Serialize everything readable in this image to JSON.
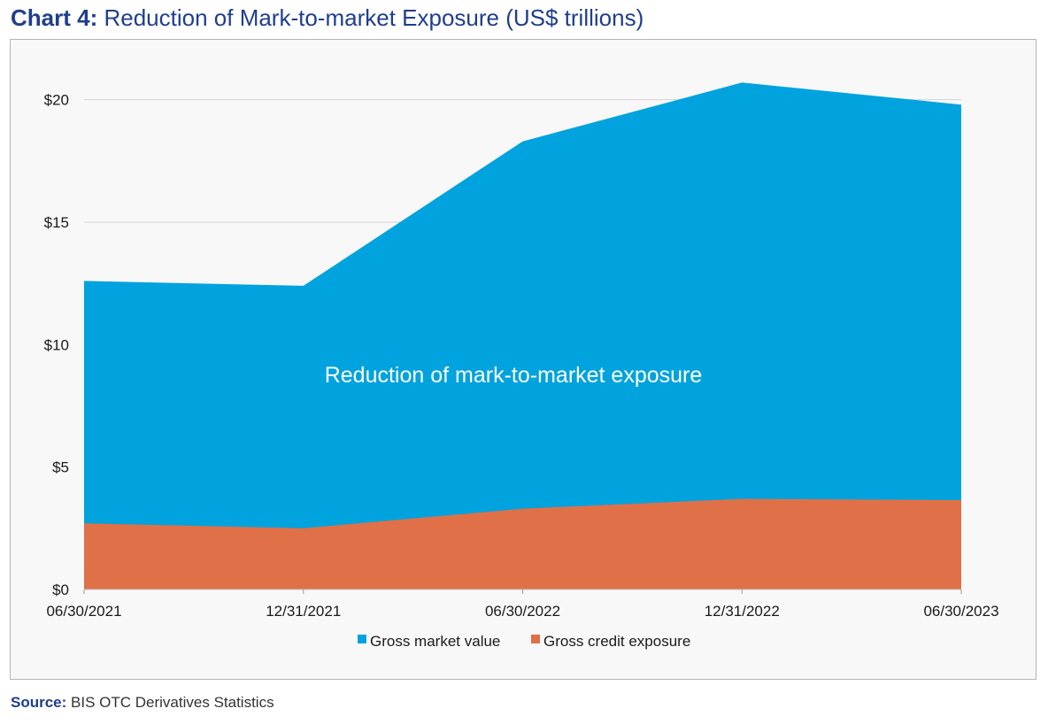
{
  "title": {
    "prefix": "Chart 4:",
    "text": "Reduction of Mark-to-market Exposure (US$ trillions)"
  },
  "source": {
    "prefix": "Source:",
    "text": "BIS OTC Derivatives Statistics"
  },
  "colors": {
    "title": "#1f3e8c",
    "gross_market_value": "#00a3dd",
    "gross_credit_exposure": "#e07048",
    "grid": "#d4d4d4",
    "axis_text": "#1a1a1a",
    "source_label": "#1f3e8c"
  },
  "chart_data": {
    "type": "area",
    "title": "Reduction of Mark-to-market Exposure (US$ trillions)",
    "categories": [
      "06/30/2021",
      "12/31/2021",
      "06/30/2022",
      "12/31/2022",
      "06/30/2023"
    ],
    "series": [
      {
        "name": "Gross market value",
        "values": [
          12.6,
          12.4,
          18.3,
          20.7,
          19.8
        ]
      },
      {
        "name": "Gross credit exposure",
        "values": [
          2.7,
          2.5,
          3.3,
          3.7,
          3.65
        ]
      }
    ],
    "y_ticks": [
      0,
      5,
      10,
      15,
      20
    ],
    "y_tick_labels": [
      "$0",
      "$5",
      "$10",
      "$15",
      "$20"
    ],
    "ylim": [
      0,
      21
    ],
    "grid": true,
    "legend_position": "bottom-center",
    "annotation": "Reduction of mark-to-market exposure",
    "xlabel": "",
    "ylabel": ""
  }
}
